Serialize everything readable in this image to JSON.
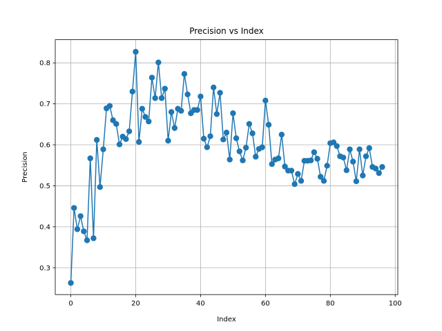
{
  "chart_data": {
    "type": "line",
    "title": "Precision vs Index",
    "xlabel": "Index",
    "ylabel": "Precision",
    "xlim": [
      -4.8,
      100.8
    ],
    "ylim": [
      0.2345,
      0.8565
    ],
    "xticks": [
      0,
      20,
      40,
      60,
      80,
      100
    ],
    "yticks": [
      0.3,
      0.4,
      0.5,
      0.6,
      0.7,
      0.8
    ],
    "grid": true,
    "legend": "none",
    "color": "#1f77b4",
    "series": [
      {
        "name": "Precision",
        "marker": "circle",
        "x": [
          0,
          1,
          2,
          3,
          4,
          5,
          6,
          7,
          8,
          9,
          10,
          11,
          12,
          13,
          14,
          15,
          16,
          17,
          18,
          19,
          20,
          21,
          22,
          23,
          24,
          25,
          26,
          27,
          28,
          29,
          30,
          31,
          32,
          33,
          34,
          35,
          36,
          37,
          38,
          39,
          40,
          41,
          42,
          43,
          44,
          45,
          46,
          47,
          48,
          49,
          50,
          51,
          52,
          53,
          54,
          55,
          56,
          57,
          58,
          59,
          60,
          61,
          62,
          63,
          64,
          65,
          66,
          67,
          68,
          69,
          70,
          71,
          72,
          73,
          74,
          75,
          76,
          77,
          78,
          79,
          80,
          81,
          82,
          83,
          84,
          85,
          86,
          87,
          88,
          89,
          90,
          91,
          92,
          93,
          94,
          95,
          96
        ],
        "values": [
          0.263,
          0.446,
          0.394,
          0.426,
          0.389,
          0.367,
          0.567,
          0.372,
          0.612,
          0.497,
          0.589,
          0.689,
          0.695,
          0.66,
          0.651,
          0.601,
          0.62,
          0.614,
          0.633,
          0.73,
          0.827,
          0.607,
          0.688,
          0.668,
          0.657,
          0.764,
          0.714,
          0.801,
          0.714,
          0.737,
          0.61,
          0.68,
          0.641,
          0.688,
          0.683,
          0.773,
          0.723,
          0.677,
          0.685,
          0.685,
          0.718,
          0.615,
          0.594,
          0.621,
          0.74,
          0.675,
          0.727,
          0.613,
          0.63,
          0.564,
          0.677,
          0.616,
          0.584,
          0.562,
          0.593,
          0.651,
          0.628,
          0.571,
          0.59,
          0.594,
          0.708,
          0.649,
          0.553,
          0.564,
          0.567,
          0.625,
          0.547,
          0.537,
          0.537,
          0.504,
          0.529,
          0.512,
          0.561,
          0.561,
          0.562,
          0.582,
          0.566,
          0.522,
          0.512,
          0.549,
          0.604,
          0.606,
          0.597,
          0.572,
          0.569,
          0.538,
          0.589,
          0.559,
          0.511,
          0.589,
          0.525,
          0.572,
          0.592,
          0.546,
          0.542,
          0.531,
          0.546
        ]
      }
    ]
  }
}
